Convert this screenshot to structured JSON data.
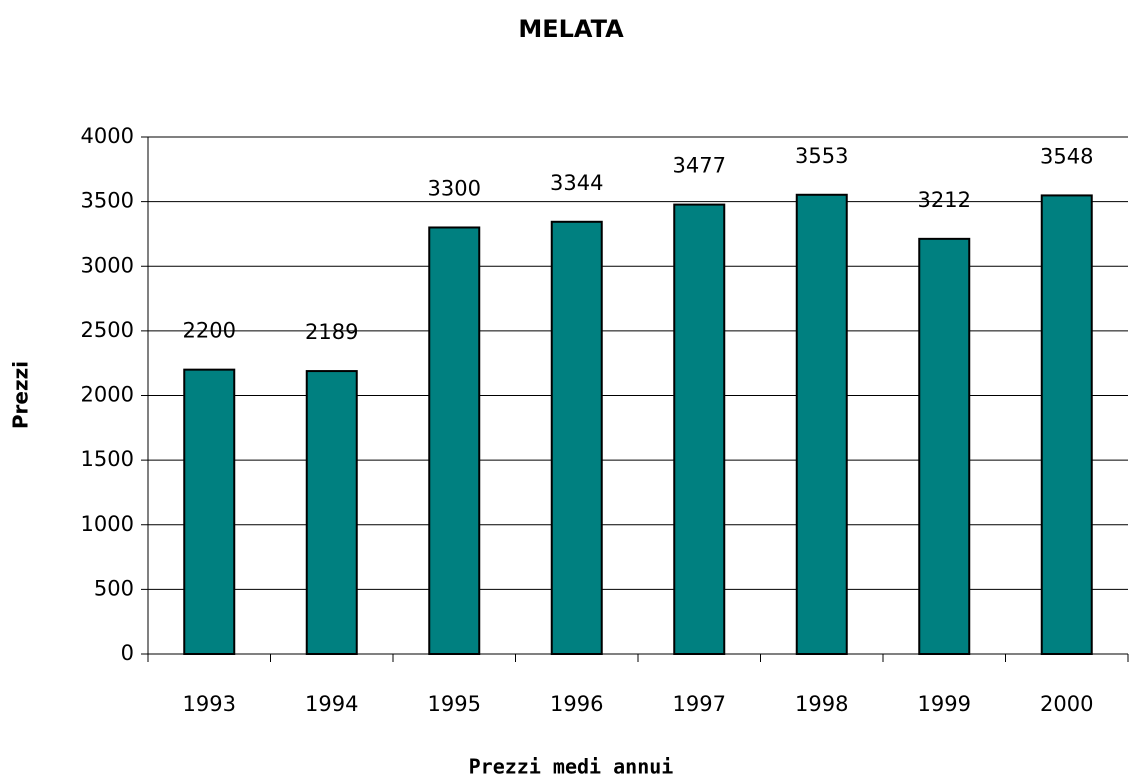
{
  "chart_data": {
    "type": "bar",
    "title": "MELATA",
    "x_label": "Prezzi medi annui",
    "y_label": "Prezzi",
    "categories": [
      "1993",
      "1994",
      "1995",
      "1996",
      "1997",
      "1998",
      "1999",
      "2000"
    ],
    "values": [
      2200,
      2189,
      3300,
      3344,
      3477,
      3553,
      3212,
      3548
    ],
    "color": "#008080",
    "ylim": [
      0,
      4000
    ],
    "yticks": [
      0,
      500,
      1000,
      1500,
      2000,
      2500,
      3000,
      3500,
      4000
    ],
    "grid": true,
    "data_labels": true
  }
}
